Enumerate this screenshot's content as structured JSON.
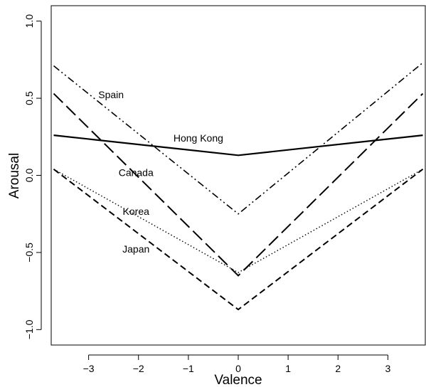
{
  "chart_data": {
    "type": "line",
    "title": "",
    "xlabel": "Valence",
    "ylabel": "Arousal",
    "xlim": [
      -3.75,
      3.75
    ],
    "ylim": [
      -1.1,
      1.1
    ],
    "x_ticks": [
      -3,
      -2,
      -1,
      0,
      1,
      2,
      3
    ],
    "x_tick_labels": [
      "−3",
      "−2",
      "−1",
      "0",
      "1",
      "2",
      "3"
    ],
    "y_ticks": [
      -1.0,
      -0.5,
      0.0,
      0.5,
      1.0
    ],
    "y_tick_labels": [
      "−1.0",
      "−0.5",
      "0.0",
      "0.5",
      "1.0"
    ],
    "grid": false,
    "legend": "none",
    "series": [
      {
        "name": "Spain",
        "linestyle": "dashdotdot",
        "x": [
          -3.7,
          0,
          3.7
        ],
        "y": [
          0.71,
          -0.25,
          0.73
        ],
        "label_at": [
          -2.55,
          0.5
        ]
      },
      {
        "name": "Hong Kong",
        "linestyle": "solid",
        "x": [
          -3.7,
          0,
          3.7
        ],
        "y": [
          0.26,
          0.13,
          0.26
        ],
        "label_at": [
          -0.8,
          0.22
        ]
      },
      {
        "name": "Canada",
        "linestyle": "longdash",
        "x": [
          -3.7,
          0,
          3.7
        ],
        "y": [
          0.53,
          -0.65,
          0.53
        ],
        "label_at": [
          -2.05,
          -0.005
        ]
      },
      {
        "name": "Korea",
        "linestyle": "dotted",
        "x": [
          -3.7,
          0,
          3.7
        ],
        "y": [
          0.04,
          -0.63,
          0.04
        ],
        "label_at": [
          -2.05,
          -0.255
        ]
      },
      {
        "name": "Japan",
        "linestyle": "dashed",
        "x": [
          -3.7,
          0,
          3.7
        ],
        "y": [
          0.04,
          -0.87,
          0.04
        ],
        "label_at": [
          -2.05,
          -0.5
        ]
      }
    ]
  }
}
